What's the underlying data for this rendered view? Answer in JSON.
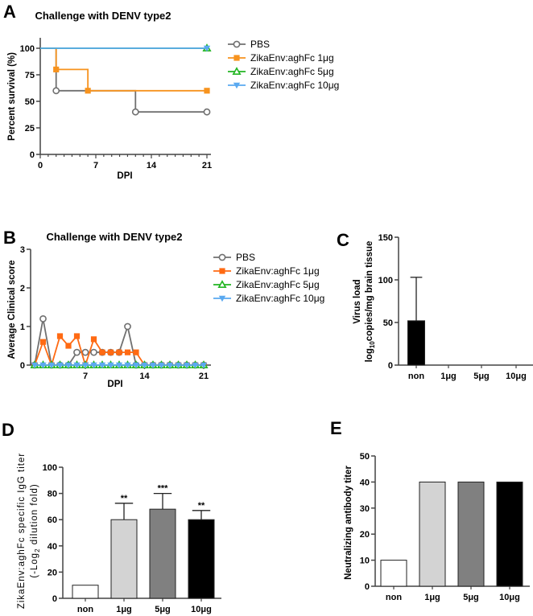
{
  "chart_data": [
    {
      "panel": "A",
      "type": "line",
      "subtype": "survival-step",
      "title": "Challenge with DENV type2",
      "xlabel": "DPI",
      "ylabel": "Percent survival (%)",
      "xlim": [
        0,
        21
      ],
      "ylim": [
        0,
        110
      ],
      "xticks": [
        0,
        7,
        14,
        21
      ],
      "yticks": [
        0,
        25,
        50,
        75,
        100
      ],
      "grid": false,
      "legend": "right",
      "series": [
        {
          "name": "PBS",
          "color": "#707070",
          "marker": "circle-open",
          "points": [
            [
              0,
              100
            ],
            [
              2,
              60
            ],
            [
              12,
              40
            ],
            [
              21,
              40
            ]
          ]
        },
        {
          "name": "ZikaEnv:aghFc 1μg",
          "color": "#f7931e",
          "marker": "square",
          "points": [
            [
              0,
              100
            ],
            [
              2,
              80
            ],
            [
              6,
              60
            ],
            [
              21,
              60
            ]
          ]
        },
        {
          "name": "ZikaEnv:aghFc 5μg",
          "color": "#22b522",
          "marker": "triangle-up-open",
          "points": [
            [
              0,
              100
            ],
            [
              21,
              100
            ]
          ]
        },
        {
          "name": "ZikaEnv:aghFc 10μg",
          "color": "#5aa9f0",
          "marker": "triangle-down",
          "points": [
            [
              0,
              100
            ],
            [
              21,
              100
            ]
          ]
        }
      ]
    },
    {
      "panel": "B",
      "type": "line",
      "title": "Challenge with DENV type2",
      "xlabel": "DPI",
      "ylabel": "Average Clinical score",
      "xlim": [
        0.6,
        21.5
      ],
      "ylim": [
        0,
        3
      ],
      "xticks": [
        7,
        14,
        21
      ],
      "yticks": [
        0,
        1,
        2,
        3
      ],
      "grid": false,
      "legend": "right",
      "x": [
        1,
        2,
        3,
        4,
        5,
        6,
        7,
        8,
        9,
        10,
        11,
        12,
        13,
        14,
        15,
        16,
        17,
        18,
        19,
        20,
        21
      ],
      "series": [
        {
          "name": "PBS",
          "color": "#707070",
          "marker": "circle-open",
          "values": [
            0,
            1.2,
            0,
            0,
            0,
            0.33,
            0.33,
            0.33,
            0.33,
            0.33,
            0.33,
            1,
            0,
            0,
            0,
            0,
            0,
            0,
            0,
            0,
            0
          ]
        },
        {
          "name": "ZikaEnv:aghFc 1μg",
          "color": "#ff6a13",
          "marker": "square",
          "values": [
            0,
            0.6,
            0,
            0.75,
            0.5,
            0.75,
            0,
            0.67,
            0.33,
            0.33,
            0.33,
            0.33,
            0.33,
            0,
            0,
            0,
            0,
            0,
            0,
            0,
            0
          ]
        },
        {
          "name": "ZikaEnv:aghFc 5μg",
          "color": "#22b522",
          "marker": "triangle-up-open",
          "values": [
            0,
            0,
            0,
            0,
            0,
            0,
            0,
            0,
            0,
            0,
            0,
            0,
            0,
            0,
            0,
            0,
            0,
            0,
            0,
            0,
            0
          ]
        },
        {
          "name": "ZikaEnv:aghFc 10μg",
          "color": "#5aa9f0",
          "marker": "triangle-down",
          "values": [
            0,
            0,
            0,
            0,
            0,
            0,
            0,
            0,
            0,
            0,
            0,
            0,
            0,
            0,
            0,
            0,
            0,
            0,
            0,
            0,
            0
          ]
        }
      ]
    },
    {
      "panel": "C",
      "type": "bar",
      "title": "",
      "xlabel": "",
      "ylabel_line1": "Virus load",
      "ylabel_line2": {
        "pre": "log",
        "sub": "10",
        "post": "copies/mg brain tissue"
      },
      "ylim": [
        0,
        150
      ],
      "yticks": [
        0,
        50,
        100,
        150
      ],
      "categories": [
        "non",
        "1μg",
        "5μg",
        "10μg"
      ],
      "values": [
        52,
        0,
        0,
        0
      ],
      "errors": [
        103,
        null,
        null,
        null
      ],
      "colors": [
        "#000000",
        "#000000",
        "#000000",
        "#000000"
      ]
    },
    {
      "panel": "D",
      "type": "bar",
      "title": "",
      "xlabel": "",
      "ylabel_line1": "ZikaEnv:aghFc specific IgG titer",
      "ylabel_line2": {
        "pre": "(-Log",
        "sub": "2",
        "post": " dilution fold)"
      },
      "ylim": [
        0,
        100
      ],
      "yticks": [
        0,
        20,
        40,
        60,
        80,
        100
      ],
      "categories": [
        "non",
        "1μg",
        "5μg",
        "10μg"
      ],
      "values": [
        10,
        60,
        68,
        60
      ],
      "errors": [
        null,
        72.5,
        80,
        67
      ],
      "annotations": [
        "",
        "**",
        "***",
        "**"
      ],
      "colors": [
        "#ffffff",
        "#d3d3d3",
        "#808080",
        "#000000"
      ]
    },
    {
      "panel": "E",
      "type": "bar",
      "title": "",
      "xlabel": "",
      "ylabel": "Neutralizing antibody titer",
      "ylim": [
        0,
        50
      ],
      "yticks": [
        0,
        10,
        20,
        30,
        40,
        50
      ],
      "categories": [
        "non",
        "1μg",
        "5μg",
        "10μg"
      ],
      "values": [
        10,
        40,
        40,
        40
      ],
      "colors": [
        "#ffffff",
        "#d3d3d3",
        "#808080",
        "#000000"
      ]
    }
  ]
}
